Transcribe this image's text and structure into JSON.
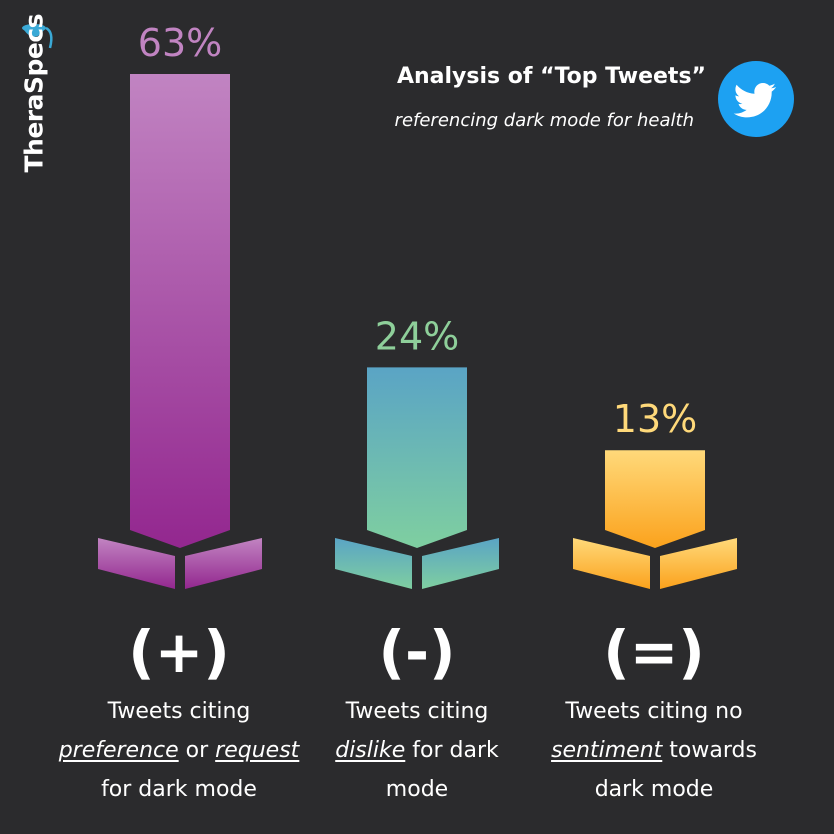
{
  "brand": {
    "name": "TheraSpecs"
  },
  "header": {
    "title": "Analysis of “Top Tweets”",
    "subtitle": "referencing dark mode for health"
  },
  "colors": {
    "background": "#2b2b2d",
    "positive_top": "#c184c2",
    "positive_bottom": "#93278f",
    "negative_top": "#5aa4c5",
    "negative_bottom": "#7fcfa0",
    "neutral_top": "#ffd97a",
    "neutral_bottom": "#fba21c",
    "twitter": "#1da1f2"
  },
  "chart_data": {
    "type": "bar",
    "categories": [
      "(+)",
      "(-)",
      "(=)"
    ],
    "values": [
      63,
      24,
      13
    ],
    "value_labels": [
      "63%",
      "24%",
      "13%"
    ],
    "ylim": [
      0,
      65
    ]
  },
  "categories": [
    {
      "symbol": "(+)",
      "desc": {
        "l1": "Tweets citing",
        "l2a": "preference",
        "l2b": " or ",
        "l2c": "request",
        "l3": "for dark mode"
      }
    },
    {
      "symbol": "(-)",
      "desc": {
        "l1": "Tweets citing",
        "l2a": "dislike",
        "l2b": " for dark",
        "l3": "mode"
      }
    },
    {
      "symbol": "(=)",
      "desc": {
        "l1": "Tweets citing no",
        "l2a": "sentiment",
        "l2b": " towards",
        "l3": "dark mode"
      }
    }
  ]
}
